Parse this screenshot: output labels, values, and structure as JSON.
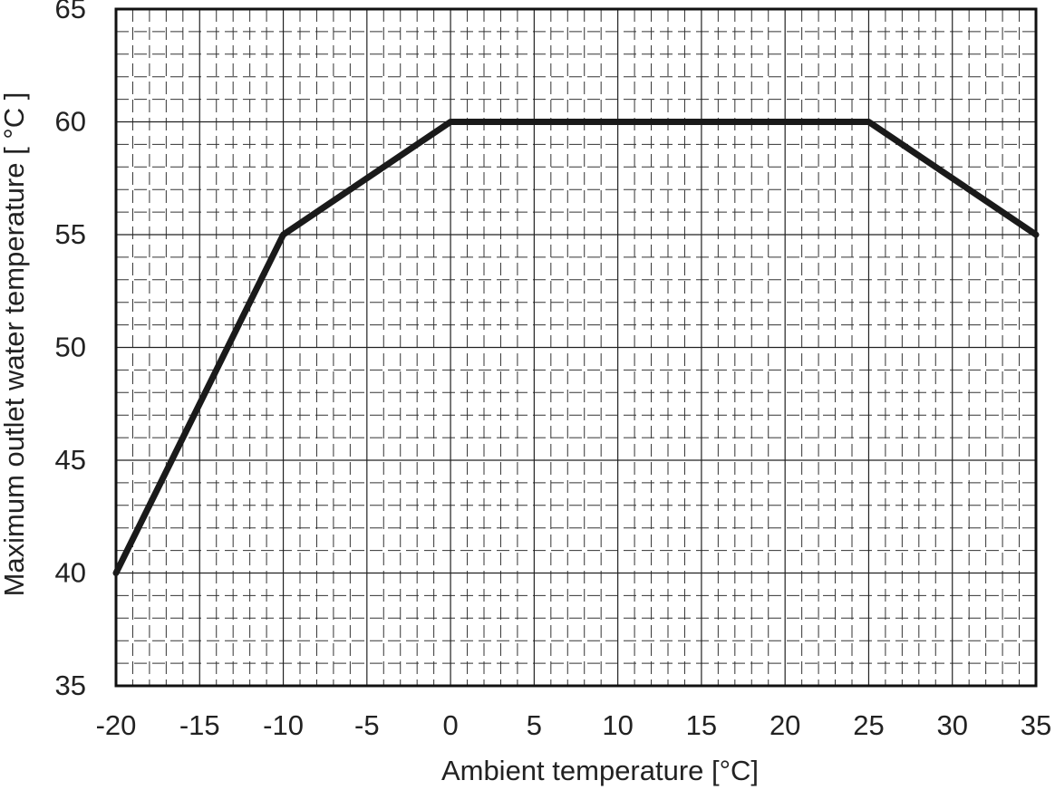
{
  "chart_data": {
    "type": "line",
    "x_label": "Ambient temperature [°C]",
    "y_label": "Maximum outlet water temperature [ °C ]",
    "x": [
      -20,
      -10,
      0,
      25,
      35
    ],
    "series": [
      {
        "color": "#1a1a1a",
        "values": [
          40,
          55,
          60,
          60,
          55
        ]
      }
    ],
    "xlim": [
      -20,
      35
    ],
    "xticks": [
      -20,
      -15,
      -10,
      -5,
      0,
      5,
      10,
      15,
      20,
      25,
      30,
      35
    ],
    "ylim": [
      35,
      65
    ],
    "yticks": [
      35,
      40,
      45,
      50,
      55,
      60,
      65
    ],
    "grid": true,
    "minor_grid": true
  }
}
